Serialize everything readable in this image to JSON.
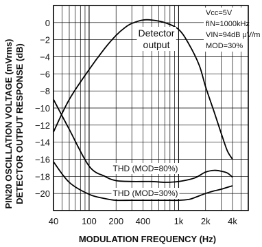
{
  "chart_data": {
    "type": "line",
    "xlabel": "MODULATION FREQUENCY (Hz)",
    "ylabel": "PIN20 OSCILLATION VOLTAGE (mVrms) DETECTOR OUTPUT RESPONSE (dB)",
    "ylabel_line1": "PIN20 OSCILLATION VOLTAGE (mVrms)",
    "ylabel_line2": "DETECTOR OUTPUT RESPONSE (dB)",
    "x_scale": "log",
    "xlim": [
      40,
      6000
    ],
    "ylim": [
      -22,
      2
    ],
    "grid": true,
    "x_ticks": [
      {
        "value": 40,
        "label": "40"
      },
      {
        "value": 100,
        "label": "100"
      },
      {
        "value": 200,
        "label": "200"
      },
      {
        "value": 400,
        "label": "400"
      },
      {
        "value": 1000,
        "label": "1k"
      },
      {
        "value": 2000,
        "label": "2k"
      },
      {
        "value": 4000,
        "label": "4k"
      }
    ],
    "y_ticks": [
      {
        "value": 0,
        "label": "0"
      },
      {
        "value": -2,
        "label": "−2"
      },
      {
        "value": -4,
        "label": "−4"
      },
      {
        "value": -6,
        "label": "−6"
      },
      {
        "value": -8,
        "label": "−8"
      },
      {
        "value": -10,
        "label": "−10"
      },
      {
        "value": -12,
        "label": "−12"
      },
      {
        "value": -14,
        "label": "−14"
      },
      {
        "value": -16,
        "label": "−16"
      },
      {
        "value": -18,
        "label": "−18"
      },
      {
        "value": -20,
        "label": "−20"
      }
    ],
    "conditions": [
      "Vcc=5V",
      "fIN=1000kHz",
      "VIN=94dB μV/m",
      "MOD=30%"
    ],
    "series": [
      {
        "name": "Detector output",
        "label_lines": [
          "Detector",
          "output"
        ],
        "x": [
          40,
          60,
          100,
          150,
          200,
          250,
          300,
          400,
          500,
          700,
          1000,
          1300,
          1700,
          2000,
          2500,
          3000,
          3500,
          4000
        ],
        "y": [
          -12.8,
          -9,
          -5.5,
          -3,
          -1.5,
          -0.6,
          -0.1,
          0.3,
          0.3,
          0,
          -0.8,
          -2.5,
          -5,
          -7.5,
          -10.5,
          -13,
          -15,
          -16
        ]
      },
      {
        "name": "THD (MOD=80%)",
        "x": [
          40,
          60,
          100,
          150,
          200,
          300,
          500,
          700,
          1000,
          1500,
          2000,
          2500,
          3000,
          3500,
          4000
        ],
        "y": [
          -9,
          -12.5,
          -16.8,
          -18,
          -18.5,
          -18.6,
          -18.6,
          -18.7,
          -18.6,
          -18.2,
          -17.5,
          -17.3,
          -17.4,
          -17.6,
          -18.1
        ]
      },
      {
        "name": "THD (MOD=30%)",
        "x": [
          40,
          60,
          100,
          150,
          200,
          300,
          500,
          700,
          1000,
          1300,
          1500,
          2000,
          2500,
          3000,
          4000
        ],
        "y": [
          -16.3,
          -18.7,
          -20.1,
          -20.6,
          -20.8,
          -20.8,
          -20.8,
          -20.8,
          -20.8,
          -20.7,
          -20.5,
          -20,
          -19.7,
          -19.5,
          -19.1
        ]
      }
    ]
  }
}
